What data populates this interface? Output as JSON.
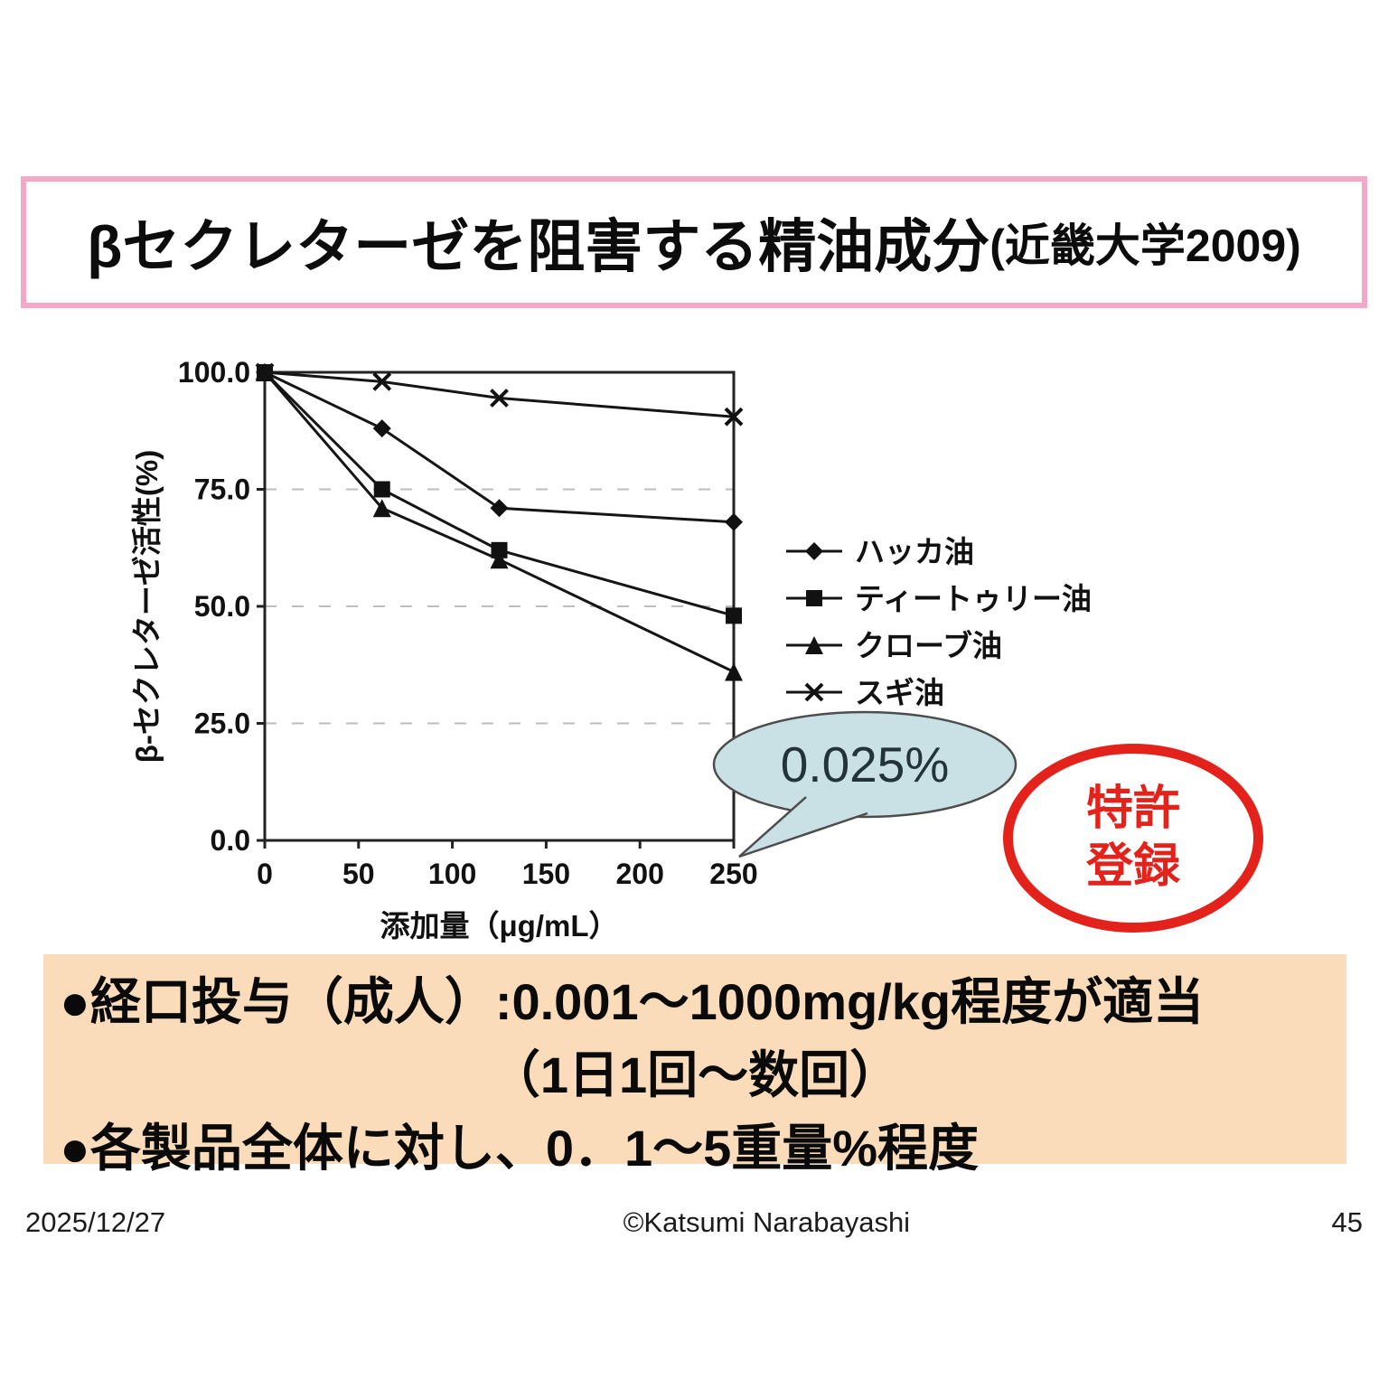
{
  "title": {
    "main": "βセクレターゼを阻害する精油成分",
    "sub": "(近畿大学2009)"
  },
  "chart_data": {
    "type": "line",
    "x": [
      0,
      62.5,
      125,
      250
    ],
    "series": [
      {
        "name": "ハッカ油",
        "marker": "diamond",
        "values": [
          100,
          88,
          71,
          68
        ]
      },
      {
        "name": "ティートゥリー油",
        "marker": "square",
        "values": [
          100,
          75,
          62,
          48
        ]
      },
      {
        "name": "クローブ油",
        "marker": "triangle",
        "values": [
          100,
          71,
          60,
          36
        ]
      },
      {
        "name": "スギ油",
        "marker": "x",
        "values": [
          100,
          98,
          94.5,
          90.5
        ]
      }
    ],
    "xlabel": "添加量（μg/mL）",
    "ylabel": "β-セクレターゼ活性(%)",
    "xticks": [
      0,
      50,
      100,
      150,
      200,
      250
    ],
    "ytick_labels": [
      "0.0",
      "25.0",
      "50.0",
      "75.0",
      "100.0"
    ],
    "xlim": [
      0,
      250
    ],
    "ylim": [
      0,
      100
    ],
    "gridlines_y": [
      25,
      50,
      75
    ],
    "grid": "dashed-horizontal",
    "legend_position": "right-middle",
    "annotation": "0.025%"
  },
  "callout": {
    "label": "0.025%"
  },
  "badge": {
    "line1": "特許",
    "line2": "登録"
  },
  "notes": {
    "line1": "●経口投与（成人）:0.001～1000mg/kg程度が適当",
    "line2": "（1日1回～数回）",
    "line3": "●各製品全体に対し、0．1～5重量%程度"
  },
  "footer": {
    "date": "2025/12/27",
    "credit": "©Katsumi Narabayashi",
    "page": "45"
  },
  "colors": {
    "title_border": "#f2a8c6",
    "notes_bg": "#fbdcba",
    "badge_red": "#e3231b",
    "callout_fill": "#c9e1e5",
    "callout_stroke": "#4d4d4d",
    "line_color": "#151515",
    "grid_color": "#9a9a9a"
  }
}
